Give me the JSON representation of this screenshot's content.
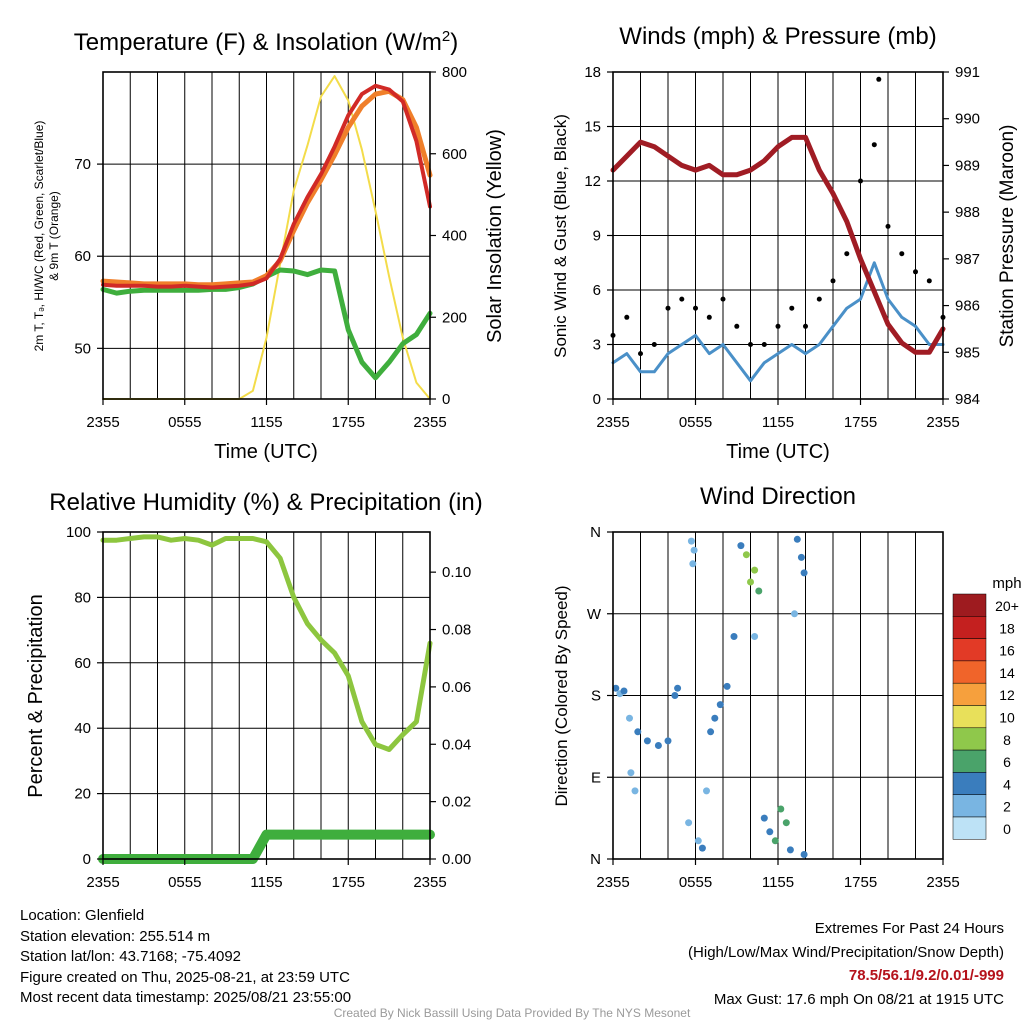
{
  "panels": {
    "temp": {
      "title": "Temperature (F) & Insolation (W/m²)",
      "title_base": "Temperature (F) & Insolation (W/m",
      "title_sup": "2",
      "title_end": ")",
      "xlabel": "Time (UTC)",
      "ylabel_left_line1": "2m T, Tₔ, HI/WC (Red, Green, Scarlet/Blue)",
      "ylabel_left_line2": "& 9m T (Orange)",
      "ylabel_right": "Solar Insolation (Yellow)"
    },
    "wind": {
      "title": "Winds (mph) & Pressure (mb)",
      "xlabel": "Time (UTC)",
      "ylabel_left": "Sonic Wind & Gust (Blue, Black)",
      "ylabel_right": "Station Pressure (Maroon)"
    },
    "rh": {
      "title": "Relative Humidity (%) & Precipitation (in)",
      "ylabel_left": "Percent & Precipitation"
    },
    "dir": {
      "title": "Wind Direction",
      "ylabel_left": "Direction (Colored By Speed)",
      "legend_title": "mph",
      "legend_labels": [
        "20+",
        "18",
        "16",
        "14",
        "12",
        "10",
        "8",
        "6",
        "4",
        "2",
        "0"
      ]
    }
  },
  "footer": {
    "location": "Location: Glenfield",
    "elevation": "Station elevation: 255.514 m",
    "latlon": "Station lat/lon: 43.7168; -75.4092",
    "created": "Figure created on Thu, 2025-08-21, at 23:59 UTC",
    "recent": "Most recent data timestamp: 2025/08/21 23:55:00",
    "extremes_title": "Extremes For Past 24 Hours",
    "extremes_desc": "(High/Low/Max Wind/Precipitation/Snow Depth)",
    "extremes_values": "78.5/56.1/9.2/0.01/-999",
    "max_gust": "Max Gust: 17.6 mph On 08/21 at 1915 UTC",
    "credit": "Created By Nick Bassill Using Data Provided By The NYS Mesonet"
  },
  "chart_data": [
    {
      "type": "line",
      "title": "Temperature (F) & Insolation (W/m2)",
      "xlabel": "Time (UTC)",
      "x_ticks": [
        "2355",
        "0555",
        "1155",
        "1755",
        "2355"
      ],
      "x": [
        0,
        1,
        2,
        3,
        4,
        5,
        6,
        7,
        8,
        9,
        10,
        11,
        12,
        13,
        14,
        15,
        16,
        17,
        18,
        19,
        20,
        21,
        22,
        23,
        24
      ],
      "ylim_left": [
        44.5,
        80
      ],
      "yticks_left": [
        50,
        60,
        70
      ],
      "ylim_right": [
        0,
        800
      ],
      "yticks_right": [
        0,
        200,
        400,
        600,
        800
      ],
      "series": [
        {
          "name": "2m T",
          "color": "#d12a26",
          "axis": "left",
          "values": [
            56.9,
            56.8,
            56.8,
            56.8,
            56.7,
            56.7,
            56.8,
            56.7,
            56.6,
            56.7,
            56.8,
            57.0,
            57.6,
            59.7,
            63.5,
            66.4,
            68.9,
            71.9,
            75.3,
            77.6,
            78.5,
            78.1,
            76.8,
            72.5,
            65.4
          ]
        },
        {
          "name": "9m T",
          "color": "#f07f2a",
          "axis": "left",
          "values": [
            57.3,
            57.2,
            57.1,
            57.0,
            57.0,
            57.0,
            57.0,
            56.9,
            56.9,
            57.0,
            57.1,
            57.2,
            57.9,
            59.5,
            62.8,
            65.8,
            68.3,
            71.0,
            74.0,
            76.3,
            77.6,
            77.9,
            77.0,
            74.0,
            68.8
          ]
        },
        {
          "name": "Td",
          "color": "#3fae3d",
          "axis": "left",
          "values": [
            56.4,
            56.0,
            56.2,
            56.3,
            56.3,
            56.3,
            56.3,
            56.3,
            56.4,
            56.4,
            56.6,
            57.0,
            57.8,
            58.5,
            58.4,
            58.0,
            58.5,
            58.4,
            52.0,
            48.5,
            46.8,
            48.5,
            50.5,
            51.5,
            53.8
          ]
        },
        {
          "name": "Solar Insolation",
          "color": "#f3dc4a",
          "axis": "right",
          "values": [
            0,
            0,
            0,
            0,
            0,
            0,
            0,
            0,
            0,
            0,
            0,
            20,
            150,
            330,
            510,
            620,
            740,
            790,
            730,
            610,
            460,
            300,
            150,
            40,
            0
          ]
        }
      ]
    },
    {
      "type": "line",
      "title": "Winds (mph) & Pressure (mb)",
      "xlabel": "Time (UTC)",
      "x_ticks": [
        "2355",
        "0555",
        "1155",
        "1755",
        "2355"
      ],
      "x": [
        0,
        1,
        2,
        3,
        4,
        5,
        6,
        7,
        8,
        9,
        10,
        11,
        12,
        13,
        14,
        15,
        16,
        17,
        18,
        19,
        20,
        21,
        22,
        23,
        24
      ],
      "ylim_left": [
        0,
        18
      ],
      "yticks_left": [
        0,
        3,
        6,
        9,
        12,
        15,
        18
      ],
      "ylim_right": [
        984,
        991
      ],
      "yticks_right": [
        984,
        985,
        986,
        987,
        988,
        989,
        990,
        991
      ],
      "series": [
        {
          "name": "Sonic Wind",
          "color": "#4a90c8",
          "axis": "left",
          "values": [
            2.0,
            2.5,
            1.5,
            1.5,
            2.5,
            3.0,
            3.5,
            2.5,
            3.0,
            2.0,
            1.0,
            2.0,
            2.5,
            3.0,
            2.5,
            3.0,
            4.0,
            5.0,
            5.5,
            7.5,
            5.5,
            4.5,
            4.0,
            3.0,
            3.0
          ]
        },
        {
          "name": "Gust",
          "color": "#000000",
          "axis": "left",
          "values": [
            3.5,
            4.5,
            2.5,
            3.0,
            5.0,
            5.5,
            5.0,
            4.5,
            5.5,
            4.0,
            3.0,
            3.0,
            4.0,
            5.0,
            4.0,
            5.5,
            6.5,
            8.0,
            12.0,
            14.0,
            9.5,
            8.0,
            7.0,
            6.5,
            4.5
          ]
        },
        {
          "name": "Station Pressure",
          "color": "#a01c24",
          "axis": "right",
          "values": [
            988.9,
            989.2,
            989.5,
            989.4,
            989.2,
            989.0,
            988.9,
            989.0,
            988.8,
            988.8,
            988.9,
            989.1,
            989.4,
            989.6,
            989.6,
            988.9,
            988.4,
            987.8,
            987.0,
            986.3,
            985.6,
            985.2,
            985.0,
            985.0,
            985.5
          ]
        },
        {
          "name": "Max Gust",
          "color": "#000000",
          "axis": "left",
          "values": [
            17.6
          ],
          "x": [
            19.33
          ]
        }
      ]
    },
    {
      "type": "line",
      "title": "Relative Humidity (%) & Precipitation (in)",
      "x_ticks": [
        "2355",
        "0555",
        "1155",
        "1755",
        "2355"
      ],
      "x": [
        0,
        1,
        2,
        3,
        4,
        5,
        6,
        7,
        8,
        9,
        10,
        11,
        12,
        13,
        14,
        15,
        16,
        17,
        18,
        19,
        20,
        21,
        22,
        23,
        24
      ],
      "ylim_left": [
        0,
        100
      ],
      "yticks_left": [
        0,
        20,
        40,
        60,
        80,
        100
      ],
      "ylim_right": [
        0,
        0.114
      ],
      "yticks_right": [
        0.0,
        0.02,
        0.04,
        0.06,
        0.08,
        0.1
      ],
      "series": [
        {
          "name": "Relative Humidity",
          "color": "#8dc63f",
          "axis": "left",
          "values": [
            97.5,
            97.5,
            98.0,
            98.5,
            98.5,
            97.5,
            98.0,
            97.5,
            96.0,
            98.0,
            98.0,
            98.0,
            97.0,
            92.0,
            80.0,
            72.0,
            67.0,
            63.0,
            56.0,
            42.0,
            35.0,
            33.5,
            38.0,
            42.0,
            66.0
          ]
        },
        {
          "name": "Precipitation",
          "color": "#3fae3d",
          "axis": "right",
          "values": [
            0.0,
            0.0,
            0.0,
            0.0,
            0.0,
            0.0,
            0.0,
            0.0,
            0.0,
            0.0,
            0.0,
            0.0,
            0.0085,
            0.0085,
            0.0085,
            0.0085,
            0.0085,
            0.0085,
            0.0085,
            0.0085,
            0.0085,
            0.0085,
            0.0085,
            0.0085,
            0.0085
          ]
        }
      ]
    },
    {
      "type": "scatter",
      "title": "Wind Direction",
      "ylabel": "Direction (Colored By Speed)",
      "x_ticks": [
        "2355",
        "0555",
        "1155",
        "1755",
        "2355"
      ],
      "yticks": [
        "N",
        "E",
        "S",
        "W",
        "N"
      ],
      "ylim": [
        0,
        360
      ],
      "colorbar_title": "mph",
      "colorbar_labels": [
        "20+",
        "18",
        "16",
        "14",
        "12",
        "10",
        "8",
        "6",
        "4",
        "2",
        "0"
      ],
      "colorbar_colors": [
        "#9e1b1f",
        "#c4201f",
        "#e23a26",
        "#f0642a",
        "#f6a03d",
        "#e8e05a",
        "#8fc84b",
        "#4aa36a",
        "#3a7dbd",
        "#79b5e2",
        "#bde2f6"
      ],
      "points": [
        {
          "x": 0.2,
          "dir": 188,
          "speed": 3
        },
        {
          "x": 0.5,
          "dir": 182,
          "speed": 2.5
        },
        {
          "x": 0.8,
          "dir": 185,
          "speed": 3
        },
        {
          "x": 1.2,
          "dir": 155,
          "speed": 2.5
        },
        {
          "x": 1.8,
          "dir": 140,
          "speed": 3
        },
        {
          "x": 2.5,
          "dir": 130,
          "speed": 3
        },
        {
          "x": 3.3,
          "dir": 125,
          "speed": 3
        },
        {
          "x": 4.0,
          "dir": 130,
          "speed": 3
        },
        {
          "x": 1.3,
          "dir": 95,
          "speed": 1.5
        },
        {
          "x": 1.6,
          "dir": 75,
          "speed": 2
        },
        {
          "x": 4.5,
          "dir": 180,
          "speed": 4
        },
        {
          "x": 4.7,
          "dir": 188,
          "speed": 3
        },
        {
          "x": 5.7,
          "dir": 350,
          "speed": 1.5
        },
        {
          "x": 5.9,
          "dir": 340,
          "speed": 1
        },
        {
          "x": 5.8,
          "dir": 325,
          "speed": 1
        },
        {
          "x": 5.5,
          "dir": 40,
          "speed": 2
        },
        {
          "x": 6.2,
          "dir": 20,
          "speed": 2.5
        },
        {
          "x": 6.5,
          "dir": 12,
          "speed": 3
        },
        {
          "x": 6.8,
          "dir": 75,
          "speed": 2
        },
        {
          "x": 7.1,
          "dir": 140,
          "speed": 3
        },
        {
          "x": 7.4,
          "dir": 155,
          "speed": 3
        },
        {
          "x": 7.8,
          "dir": 170,
          "speed": 4
        },
        {
          "x": 8.3,
          "dir": 190,
          "speed": 3
        },
        {
          "x": 8.8,
          "dir": 245,
          "speed": 3
        },
        {
          "x": 9.3,
          "dir": 345,
          "speed": 3
        },
        {
          "x": 9.7,
          "dir": 335,
          "speed": 7
        },
        {
          "x": 10.0,
          "dir": 305,
          "speed": 7
        },
        {
          "x": 10.3,
          "dir": 318,
          "speed": 8
        },
        {
          "x": 10.6,
          "dir": 295,
          "speed": 6
        },
        {
          "x": 10.3,
          "dir": 245,
          "speed": 2
        },
        {
          "x": 11.0,
          "dir": 45,
          "speed": 4
        },
        {
          "x": 11.4,
          "dir": 30,
          "speed": 4
        },
        {
          "x": 11.8,
          "dir": 20,
          "speed": 6
        },
        {
          "x": 12.2,
          "dir": 55,
          "speed": 5
        },
        {
          "x": 12.6,
          "dir": 40,
          "speed": 6
        },
        {
          "x": 12.9,
          "dir": 10,
          "speed": 4
        },
        {
          "x": 13.4,
          "dir": 352,
          "speed": 4
        },
        {
          "x": 13.7,
          "dir": 332,
          "speed": 3
        },
        {
          "x": 13.9,
          "dir": 315,
          "speed": 3
        },
        {
          "x": 13.2,
          "dir": 270,
          "speed": 1.5
        },
        {
          "x": 13.9,
          "dir": 5,
          "speed": 4
        }
      ]
    }
  ]
}
